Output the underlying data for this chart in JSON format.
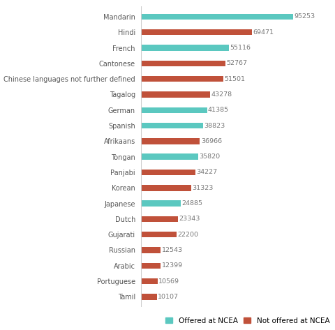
{
  "languages": [
    "Mandarin",
    "Hindi",
    "French",
    "Cantonese",
    "Chinese languages not further defined",
    "Tagalog",
    "German",
    "Spanish",
    "Afrikaans",
    "Tongan",
    "Panjabi",
    "Korean",
    "Japanese",
    "Dutch",
    "Gujarati",
    "Russian",
    "Arabic",
    "Portuguese",
    "Tamil"
  ],
  "values": [
    95253,
    69471,
    55116,
    52767,
    51501,
    43278,
    41385,
    38823,
    36966,
    35820,
    34227,
    31323,
    24885,
    23343,
    22200,
    12543,
    12399,
    10569,
    10107
  ],
  "offered": [
    true,
    false,
    true,
    false,
    false,
    false,
    true,
    true,
    false,
    true,
    false,
    false,
    true,
    false,
    false,
    false,
    false,
    false,
    false
  ],
  "color_offered": "#5bc8c0",
  "color_not_offered": "#c0513a",
  "bar_height": 0.38,
  "label_fontsize": 7.0,
  "value_fontsize": 6.8,
  "legend_fontsize": 7.5,
  "background_color": "#ffffff",
  "xlim": 115000
}
